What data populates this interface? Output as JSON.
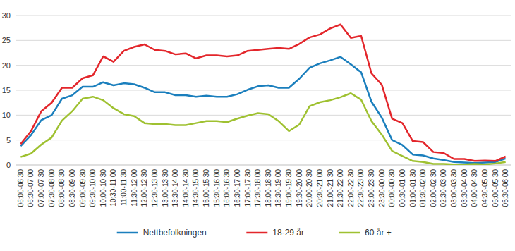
{
  "chart_data": {
    "type": "line",
    "categories": [
      "06:00-06:30",
      "06:30-07:00",
      "07:00-07:30",
      "07:30-08:00",
      "08:00-08:30",
      "08:30-09:00",
      "09:00-09:30",
      "09:30-10:00",
      "10:00-10:30",
      "10:30-11:00",
      "11:00-11:30",
      "11:30-12:00",
      "12:00-12:30",
      "12:30-13:00",
      "13:00-13:30",
      "13:30-14:00",
      "14:00-14:30",
      "14:30-15:00",
      "15:00-15:30",
      "15:30-16:00",
      "16:00-16:30",
      "16:30-17:00",
      "17:00-17:30",
      "17:30-18:00",
      "18:00-18:30",
      "18:30-19:00",
      "19:00-19:30",
      "19:30-20:00",
      "20:00-20:30",
      "20:30-21:00",
      "21:00-21:30",
      "21:30-22:00",
      "22:00-22:30",
      "22:30-23:00",
      "23:00-23:30",
      "23:30-00:00",
      "00:00-00:30",
      "00:30-01:00",
      "01:00-01:30",
      "01:30-02:00",
      "02:00-02:30",
      "02:30-03:00",
      "03:00-03:30",
      "03:30-04:00",
      "04:00-04:30",
      "04:30-05:00",
      "05:00-05:30",
      "05:30-06:00"
    ],
    "series": [
      {
        "name": "Nettbefolkningen",
        "color": "#1b7fbd",
        "values": [
          3.8,
          6,
          9,
          10,
          13.3,
          14,
          15.7,
          15.7,
          16.6,
          16,
          16.4,
          16.2,
          15.5,
          14.6,
          14.6,
          14,
          14,
          13.7,
          13.9,
          13.7,
          13.7,
          14.2,
          15.1,
          15.8,
          16,
          15.5,
          15.5,
          17.3,
          19.5,
          20.4,
          21,
          21.7,
          20.2,
          18.6,
          12.7,
          9.5,
          5,
          4,
          2.1,
          1.9,
          1.3,
          1,
          0.6,
          0.5,
          0.4,
          0.5,
          0.6,
          1.3
        ]
      },
      {
        "name": "18-29 år",
        "color": "#e3262b",
        "values": [
          4.2,
          6.8,
          10.8,
          12.5,
          15.5,
          15.5,
          17.4,
          18,
          21.8,
          20.7,
          22.9,
          23.7,
          24.2,
          23.1,
          22.9,
          22.2,
          22.4,
          21.4,
          22,
          22,
          21.8,
          22,
          22.9,
          23.1,
          23.3,
          23.5,
          23.3,
          24.3,
          25.6,
          26.2,
          27.4,
          28.2,
          25.5,
          25.9,
          18.4,
          16.1,
          9.3,
          8.4,
          4.8,
          4.6,
          2.6,
          2.4,
          1.2,
          1.2,
          0.8,
          0.9,
          0.8,
          1.7
        ]
      },
      {
        "name": "60 år +",
        "color": "#9fc131",
        "values": [
          1.6,
          2.3,
          4.1,
          5.5,
          8.9,
          10.8,
          13.3,
          13.7,
          13,
          11.4,
          10.2,
          9.8,
          8.4,
          8.2,
          8.2,
          8,
          8,
          8.4,
          8.8,
          8.8,
          8.6,
          9.3,
          9.9,
          10.4,
          10.2,
          8.8,
          6.8,
          8.1,
          11.8,
          12.6,
          13,
          13.6,
          14.4,
          13.1,
          8.8,
          6.1,
          2.8,
          1.8,
          0.8,
          0.6,
          0.2,
          0.2,
          0.1,
          0.1,
          0.2,
          0.1,
          0.3,
          0.6
        ]
      }
    ],
    "ylim": [
      0,
      30
    ],
    "yticks": [
      0,
      5,
      10,
      15,
      20,
      25,
      30
    ],
    "grid": true,
    "legend": "bottom"
  }
}
